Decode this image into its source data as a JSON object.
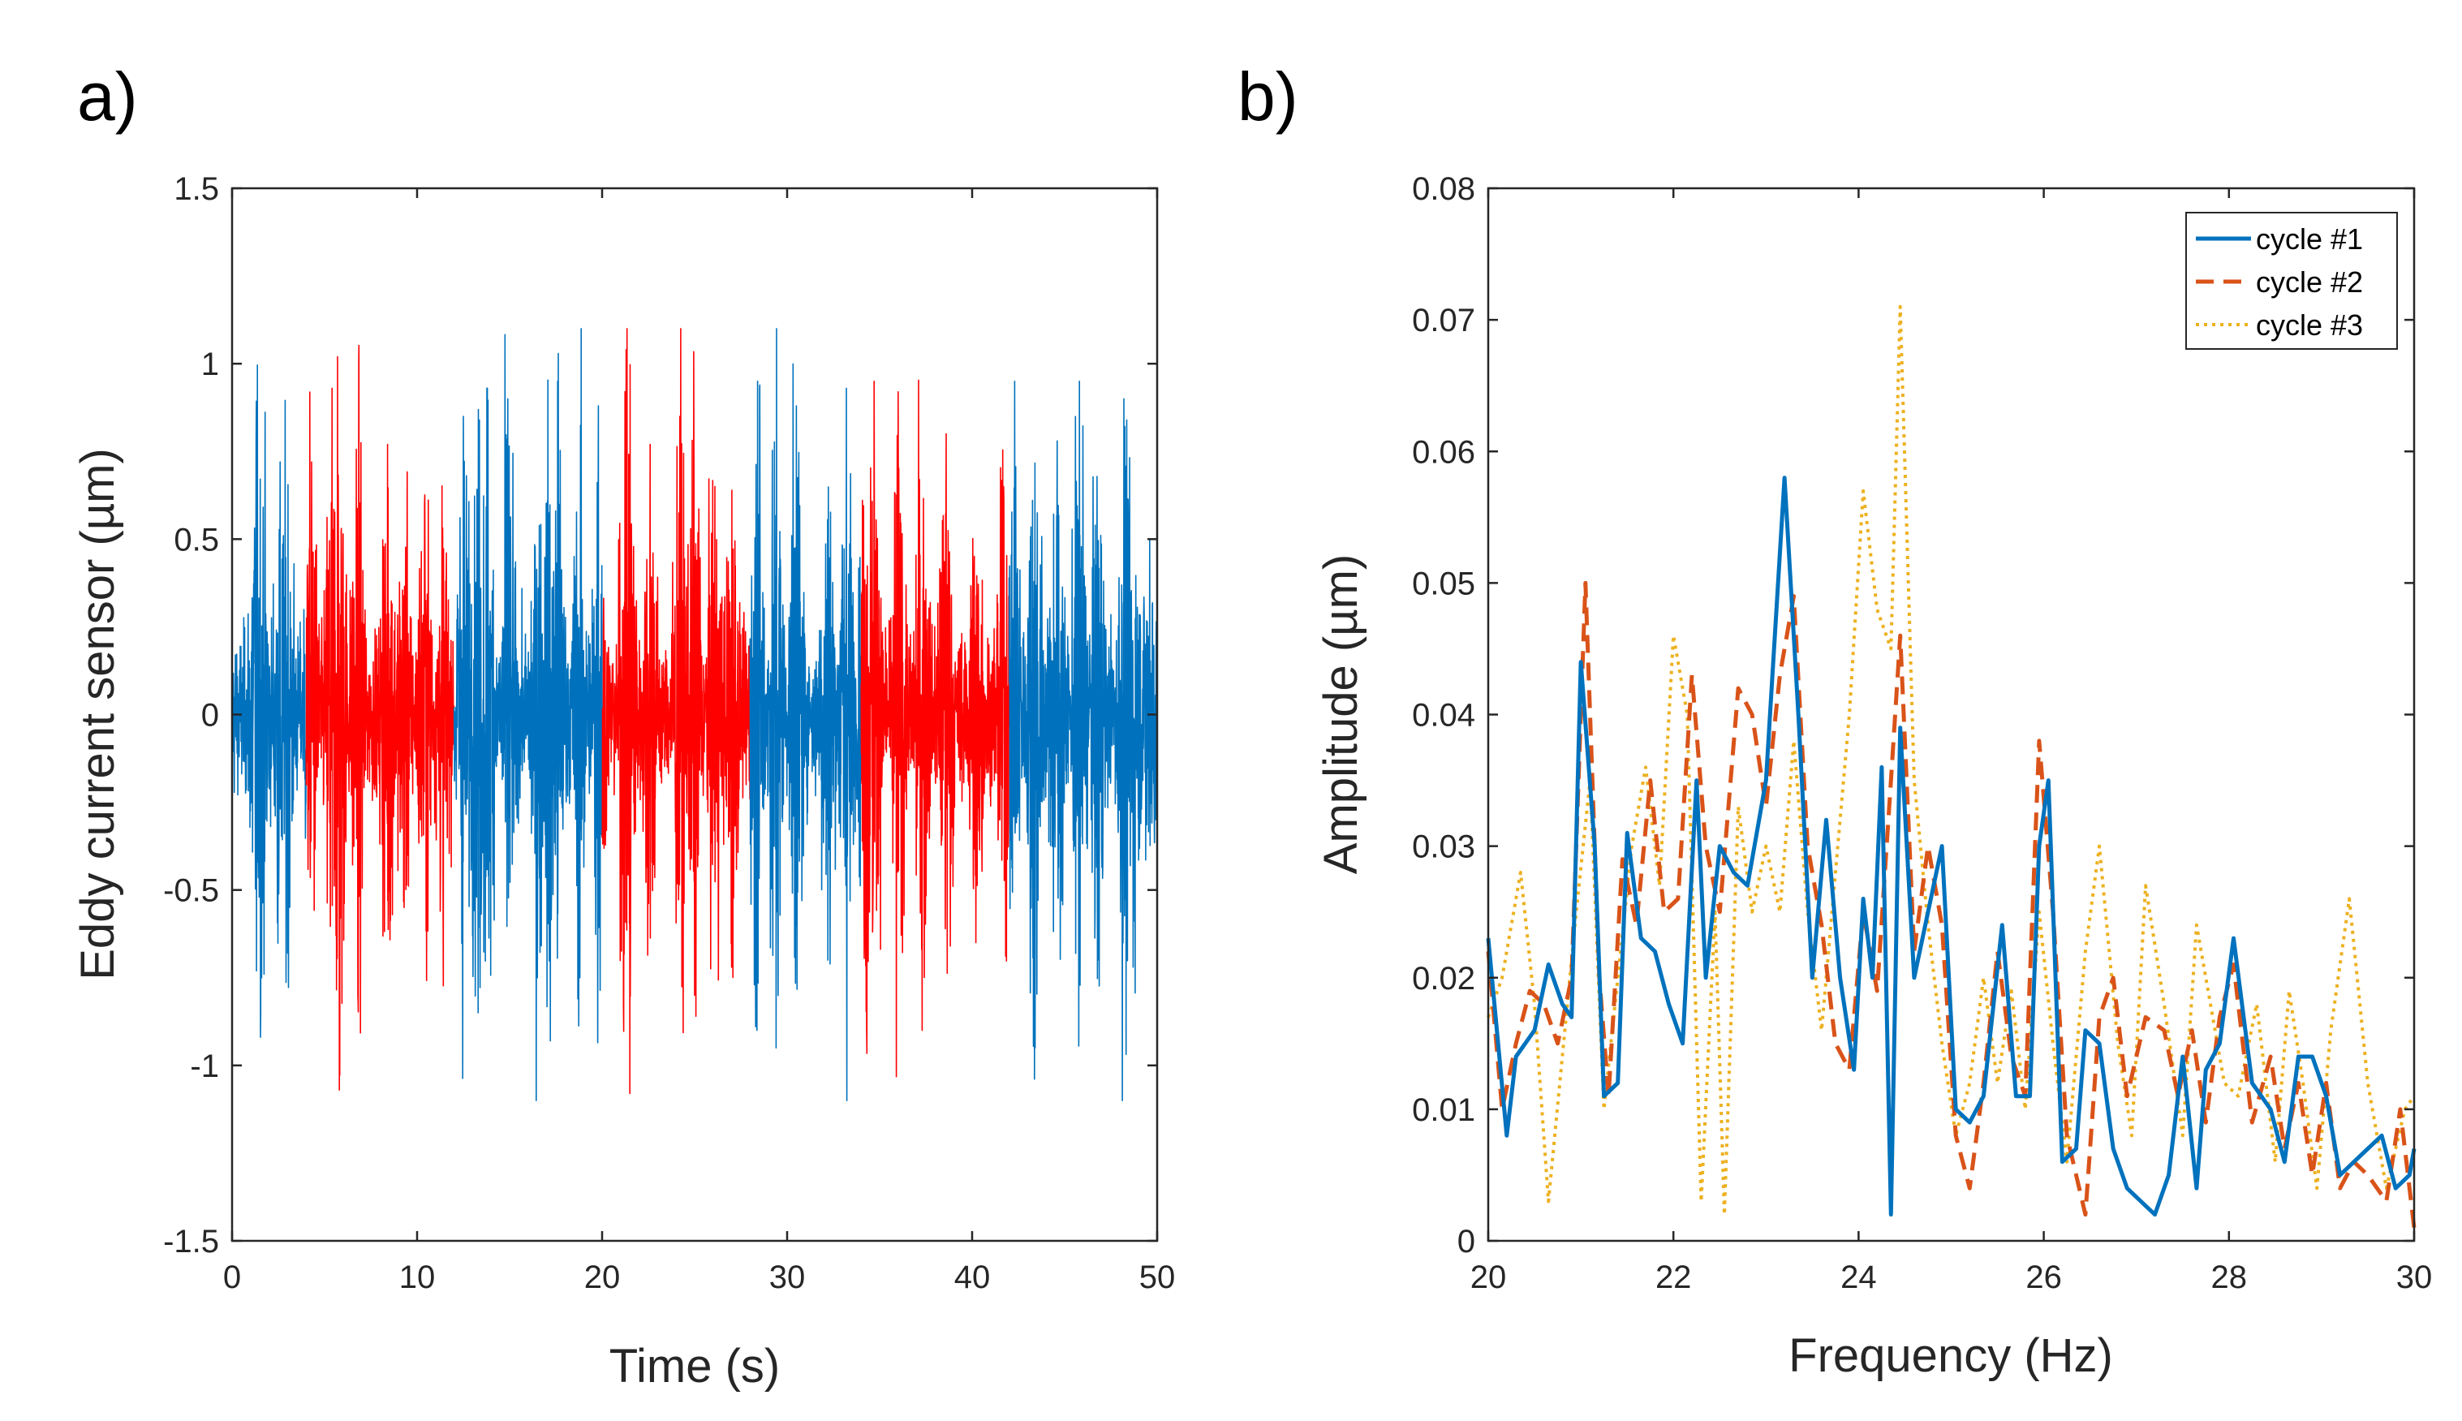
{
  "panels": [
    {
      "label": "a)",
      "chart_data": {
        "type": "line",
        "title": "",
        "xlabel": "Time (s)",
        "ylabel": "Eddy current sensor (µm)",
        "xlim": [
          0,
          50
        ],
        "ylim": [
          -1.5,
          1.5
        ],
        "xticks": [
          0,
          10,
          20,
          30,
          40,
          50
        ],
        "xtick_labels": [
          "0",
          "10",
          "20",
          "30",
          "40",
          "50"
        ],
        "yticks": [
          -1.5,
          -1,
          -0.5,
          0,
          0.5,
          1,
          1.5
        ],
        "ytick_labels": [
          "-1.5",
          "-1",
          "-0.5",
          "0",
          "0.5",
          "1",
          "1.5"
        ],
        "grid": false,
        "segments": [
          {
            "start": 0,
            "end": 4,
            "color": "#0072BD"
          },
          {
            "start": 4,
            "end": 12,
            "color": "#FF0000"
          },
          {
            "start": 12,
            "end": 20,
            "color": "#0072BD"
          },
          {
            "start": 20,
            "end": 28,
            "color": "#FF0000"
          },
          {
            "start": 28,
            "end": 34,
            "color": "#0072BD"
          },
          {
            "start": 34,
            "end": 42,
            "color": "#FF0000"
          },
          {
            "start": 42,
            "end": 50,
            "color": "#0072BD"
          }
        ],
        "envelope": {
          "typical_amplitude": 0.3,
          "peak_spikes": [
            {
              "t": 1.3,
              "v": 0.78
            },
            {
              "t": 1.6,
              "v": -0.75
            },
            {
              "t": 2.6,
              "v": 0.72
            },
            {
              "t": 3.0,
              "v": -0.68
            },
            {
              "t": 4.3,
              "v": 0.72
            },
            {
              "t": 5.4,
              "v": 0.93
            },
            {
              "t": 5.7,
              "v": 1.02
            },
            {
              "t": 5.8,
              "v": -1.07
            },
            {
              "t": 6.8,
              "v": -0.8
            },
            {
              "t": 8.4,
              "v": 0.77
            },
            {
              "t": 9.3,
              "v": -0.55
            },
            {
              "t": 10.4,
              "v": 0.6
            },
            {
              "t": 11.4,
              "v": -0.5
            },
            {
              "t": 12.5,
              "v": 0.85
            },
            {
              "t": 13.3,
              "v": -0.85
            },
            {
              "t": 13.8,
              "v": 0.93
            },
            {
              "t": 14.9,
              "v": 0.9
            },
            {
              "t": 16.5,
              "v": -0.75
            },
            {
              "t": 17.2,
              "v": -0.93
            },
            {
              "t": 17.6,
              "v": 0.95
            },
            {
              "t": 18.8,
              "v": -0.75
            },
            {
              "t": 19.8,
              "v": 0.88
            },
            {
              "t": 21.3,
              "v": 1.04
            },
            {
              "t": 21.5,
              "v": -1.08
            },
            {
              "t": 22.6,
              "v": 0.77
            },
            {
              "t": 24.2,
              "v": 0.85
            },
            {
              "t": 25.0,
              "v": -0.8
            },
            {
              "t": 26.1,
              "v": 0.65
            },
            {
              "t": 27.0,
              "v": -0.72
            },
            {
              "t": 28.4,
              "v": 0.95
            },
            {
              "t": 29.4,
              "v": -0.95
            },
            {
              "t": 30.5,
              "v": 0.88
            },
            {
              "t": 32.2,
              "v": -0.7
            },
            {
              "t": 33.2,
              "v": 0.93
            },
            {
              "t": 34.3,
              "v": -0.9
            },
            {
              "t": 34.7,
              "v": 0.95
            },
            {
              "t": 36.0,
              "v": 0.92
            },
            {
              "t": 37.3,
              "v": -0.9
            },
            {
              "t": 38.6,
              "v": 0.8
            },
            {
              "t": 40.2,
              "v": -0.65
            },
            {
              "t": 41.7,
              "v": 0.65
            },
            {
              "t": 42.3,
              "v": 0.95
            },
            {
              "t": 43.4,
              "v": -0.95
            },
            {
              "t": 44.6,
              "v": 0.78
            },
            {
              "t": 45.8,
              "v": 0.95
            },
            {
              "t": 46.8,
              "v": -0.7
            },
            {
              "t": 48.2,
              "v": 0.9
            },
            {
              "t": 48.7,
              "v": -0.72
            },
            {
              "t": 49.6,
              "v": 0.5
            }
          ]
        }
      }
    },
    {
      "label": "b)",
      "chart_data": {
        "type": "line",
        "title": "",
        "xlabel": "Frequency (Hz)",
        "ylabel": "Amplitude (µm)",
        "xlim": [
          20,
          30
        ],
        "ylim": [
          0,
          0.08
        ],
        "xticks": [
          20,
          22,
          24,
          26,
          28,
          30
        ],
        "xtick_labels": [
          "20",
          "22",
          "24",
          "26",
          "28",
          "30"
        ],
        "yticks": [
          0,
          0.01,
          0.02,
          0.03,
          0.04,
          0.05,
          0.06,
          0.07,
          0.08
        ],
        "ytick_labels": [
          "0",
          "0.01",
          "0.02",
          "0.03",
          "0.04",
          "0.05",
          "0.06",
          "0.07",
          "0.08"
        ],
        "grid": false,
        "legend_position": "top-right",
        "series": [
          {
            "name": "cycle #1",
            "color": "#0072BD",
            "style": "solid",
            "x": [
              20.0,
              20.2,
              20.3,
              20.5,
              20.65,
              20.8,
              20.9,
              21.0,
              21.15,
              21.25,
              21.4,
              21.5,
              21.65,
              21.8,
              21.95,
              22.1,
              22.25,
              22.35,
              22.5,
              22.65,
              22.8,
              23.0,
              23.2,
              23.35,
              23.5,
              23.65,
              23.8,
              23.95,
              24.05,
              24.15,
              24.25,
              24.35,
              24.45,
              24.6,
              24.75,
              24.9,
              25.05,
              25.2,
              25.35,
              25.55,
              25.7,
              25.85,
              25.95,
              26.05,
              26.2,
              26.35,
              26.45,
              26.6,
              26.75,
              26.9,
              27.05,
              27.2,
              27.35,
              27.5,
              27.65,
              27.75,
              27.9,
              28.05,
              28.25,
              28.45,
              28.6,
              28.75,
              28.9,
              29.05,
              29.2,
              29.35,
              29.5,
              29.65,
              29.8,
              29.95,
              30.0
            ],
            "y": [
              0.023,
              0.008,
              0.014,
              0.016,
              0.021,
              0.018,
              0.017,
              0.044,
              0.03,
              0.011,
              0.012,
              0.031,
              0.023,
              0.022,
              0.018,
              0.015,
              0.035,
              0.02,
              0.03,
              0.028,
              0.027,
              0.035,
              0.058,
              0.04,
              0.02,
              0.032,
              0.02,
              0.013,
              0.026,
              0.02,
              0.036,
              0.002,
              0.039,
              0.02,
              0.025,
              0.03,
              0.01,
              0.009,
              0.011,
              0.024,
              0.011,
              0.011,
              0.03,
              0.035,
              0.006,
              0.007,
              0.016,
              0.015,
              0.007,
              0.004,
              0.003,
              0.002,
              0.005,
              0.014,
              0.004,
              0.013,
              0.015,
              0.023,
              0.012,
              0.01,
              0.006,
              0.014,
              0.014,
              0.011,
              0.005,
              0.006,
              0.007,
              0.008,
              0.004,
              0.005,
              0.007
            ]
          },
          {
            "name": "cycle #2",
            "color": "#D95319",
            "style": "dashed",
            "x": [
              20.0,
              20.15,
              20.3,
              20.45,
              20.6,
              20.75,
              20.9,
              21.05,
              21.2,
              21.3,
              21.45,
              21.6,
              21.75,
              21.9,
              22.05,
              22.2,
              22.35,
              22.5,
              22.7,
              22.85,
              23.0,
              23.15,
              23.3,
              23.45,
              23.6,
              23.75,
              23.9,
              24.05,
              24.2,
              24.35,
              24.45,
              24.6,
              24.75,
              24.9,
              25.05,
              25.2,
              25.35,
              25.5,
              25.65,
              25.8,
              25.95,
              26.1,
              26.25,
              26.45,
              26.6,
              26.75,
              26.9,
              27.1,
              27.3,
              27.45,
              27.6,
              27.75,
              27.9,
              28.05,
              28.25,
              28.45,
              28.6,
              28.75,
              28.9,
              29.05,
              29.2,
              29.35,
              29.5,
              29.7,
              29.85,
              30.0
            ],
            "y": [
              0.022,
              0.01,
              0.015,
              0.019,
              0.018,
              0.015,
              0.02,
              0.05,
              0.02,
              0.011,
              0.029,
              0.024,
              0.035,
              0.025,
              0.026,
              0.043,
              0.03,
              0.025,
              0.042,
              0.04,
              0.033,
              0.043,
              0.049,
              0.03,
              0.024,
              0.015,
              0.013,
              0.025,
              0.019,
              0.035,
              0.046,
              0.022,
              0.03,
              0.024,
              0.008,
              0.004,
              0.012,
              0.022,
              0.014,
              0.011,
              0.038,
              0.025,
              0.008,
              0.002,
              0.017,
              0.02,
              0.011,
              0.017,
              0.016,
              0.011,
              0.016,
              0.009,
              0.017,
              0.021,
              0.009,
              0.014,
              0.007,
              0.012,
              0.005,
              0.012,
              0.004,
              0.006,
              0.005,
              0.003,
              0.01,
              0.001
            ]
          },
          {
            "name": "cycle #3",
            "color": "#EDB120",
            "style": "dotted",
            "x": [
              20.0,
              20.15,
              20.35,
              20.5,
              20.65,
              20.8,
              20.95,
              21.1,
              21.25,
              21.4,
              21.55,
              21.7,
              21.85,
              22.0,
              22.15,
              22.3,
              22.45,
              22.55,
              22.7,
              22.85,
              23.0,
              23.15,
              23.3,
              23.45,
              23.6,
              23.75,
              23.9,
              24.05,
              24.2,
              24.35,
              24.45,
              24.6,
              24.75,
              24.9,
              25.05,
              25.2,
              25.35,
              25.5,
              25.65,
              25.8,
              25.95,
              26.1,
              26.25,
              26.45,
              26.6,
              26.8,
              26.95,
              27.1,
              27.3,
              27.5,
              27.65,
              27.8,
              27.95,
              28.1,
              28.3,
              28.5,
              28.65,
              28.8,
              28.95,
              29.1,
              29.3,
              29.5,
              29.7,
              29.9,
              30.0
            ],
            "y": [
              0.017,
              0.02,
              0.028,
              0.018,
              0.003,
              0.014,
              0.025,
              0.035,
              0.01,
              0.02,
              0.03,
              0.036,
              0.027,
              0.046,
              0.04,
              0.003,
              0.025,
              0.002,
              0.033,
              0.025,
              0.03,
              0.025,
              0.038,
              0.025,
              0.016,
              0.028,
              0.04,
              0.057,
              0.048,
              0.045,
              0.071,
              0.035,
              0.024,
              0.015,
              0.008,
              0.012,
              0.02,
              0.012,
              0.019,
              0.01,
              0.025,
              0.015,
              0.006,
              0.022,
              0.03,
              0.015,
              0.008,
              0.027,
              0.018,
              0.008,
              0.024,
              0.018,
              0.012,
              0.011,
              0.018,
              0.006,
              0.019,
              0.012,
              0.004,
              0.016,
              0.026,
              0.012,
              0.004,
              0.01,
              0.011
            ]
          }
        ]
      }
    }
  ]
}
